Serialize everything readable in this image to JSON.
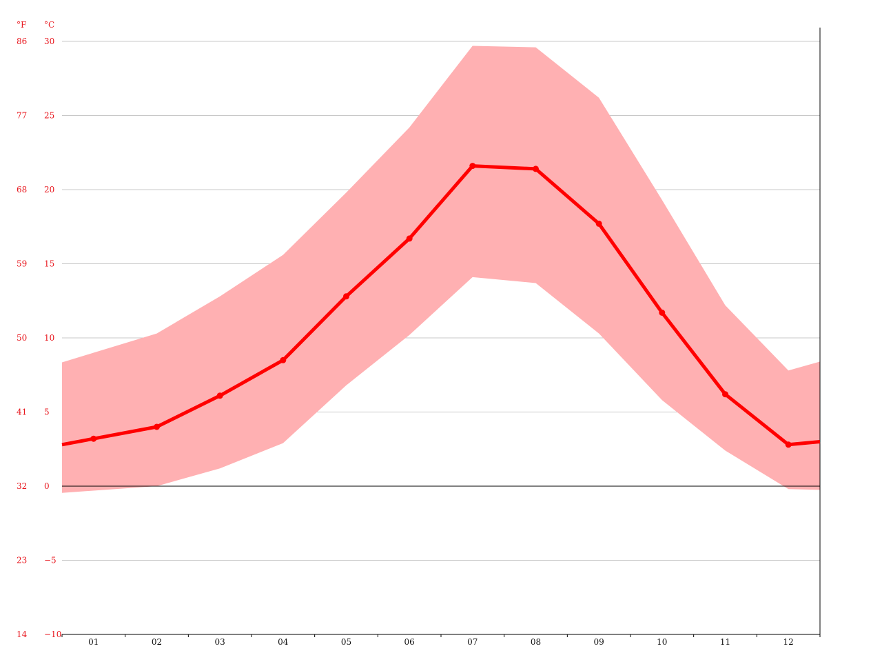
{
  "chart_data": {
    "type": "line",
    "categories": [
      "01",
      "02",
      "03",
      "04",
      "05",
      "06",
      "07",
      "08",
      "09",
      "10",
      "11",
      "12"
    ],
    "series": [
      {
        "values": [
          3.2,
          4.0,
          6.1,
          8.5,
          12.8,
          16.7,
          21.6,
          21.4,
          17.7,
          11.7,
          6.2,
          2.8
        ],
        "color": "#ff0000"
      }
    ],
    "band": {
      "upper": [
        9.0,
        10.3,
        12.8,
        15.6,
        19.8,
        24.2,
        29.7,
        29.6,
        26.2,
        19.3,
        12.2,
        7.8
      ],
      "lower": [
        -0.3,
        0.0,
        1.2,
        2.9,
        6.8,
        10.2,
        14.1,
        13.7,
        10.3,
        5.8,
        2.4,
        -0.2
      ],
      "color": "#ffb0b2"
    },
    "ylim": [
      -10,
      30
    ],
    "y_ticks_c": [
      "30",
      "25",
      "20",
      "15",
      "10",
      "5",
      "0",
      "−5",
      "−10"
    ],
    "y_ticks_f": [
      "86",
      "77",
      "68",
      "59",
      "50",
      "41",
      "32",
      "23",
      "14"
    ],
    "y_unit_f": "°F",
    "y_unit_c": "°C",
    "grid": true,
    "axis_label_color": "#e8171e"
  }
}
